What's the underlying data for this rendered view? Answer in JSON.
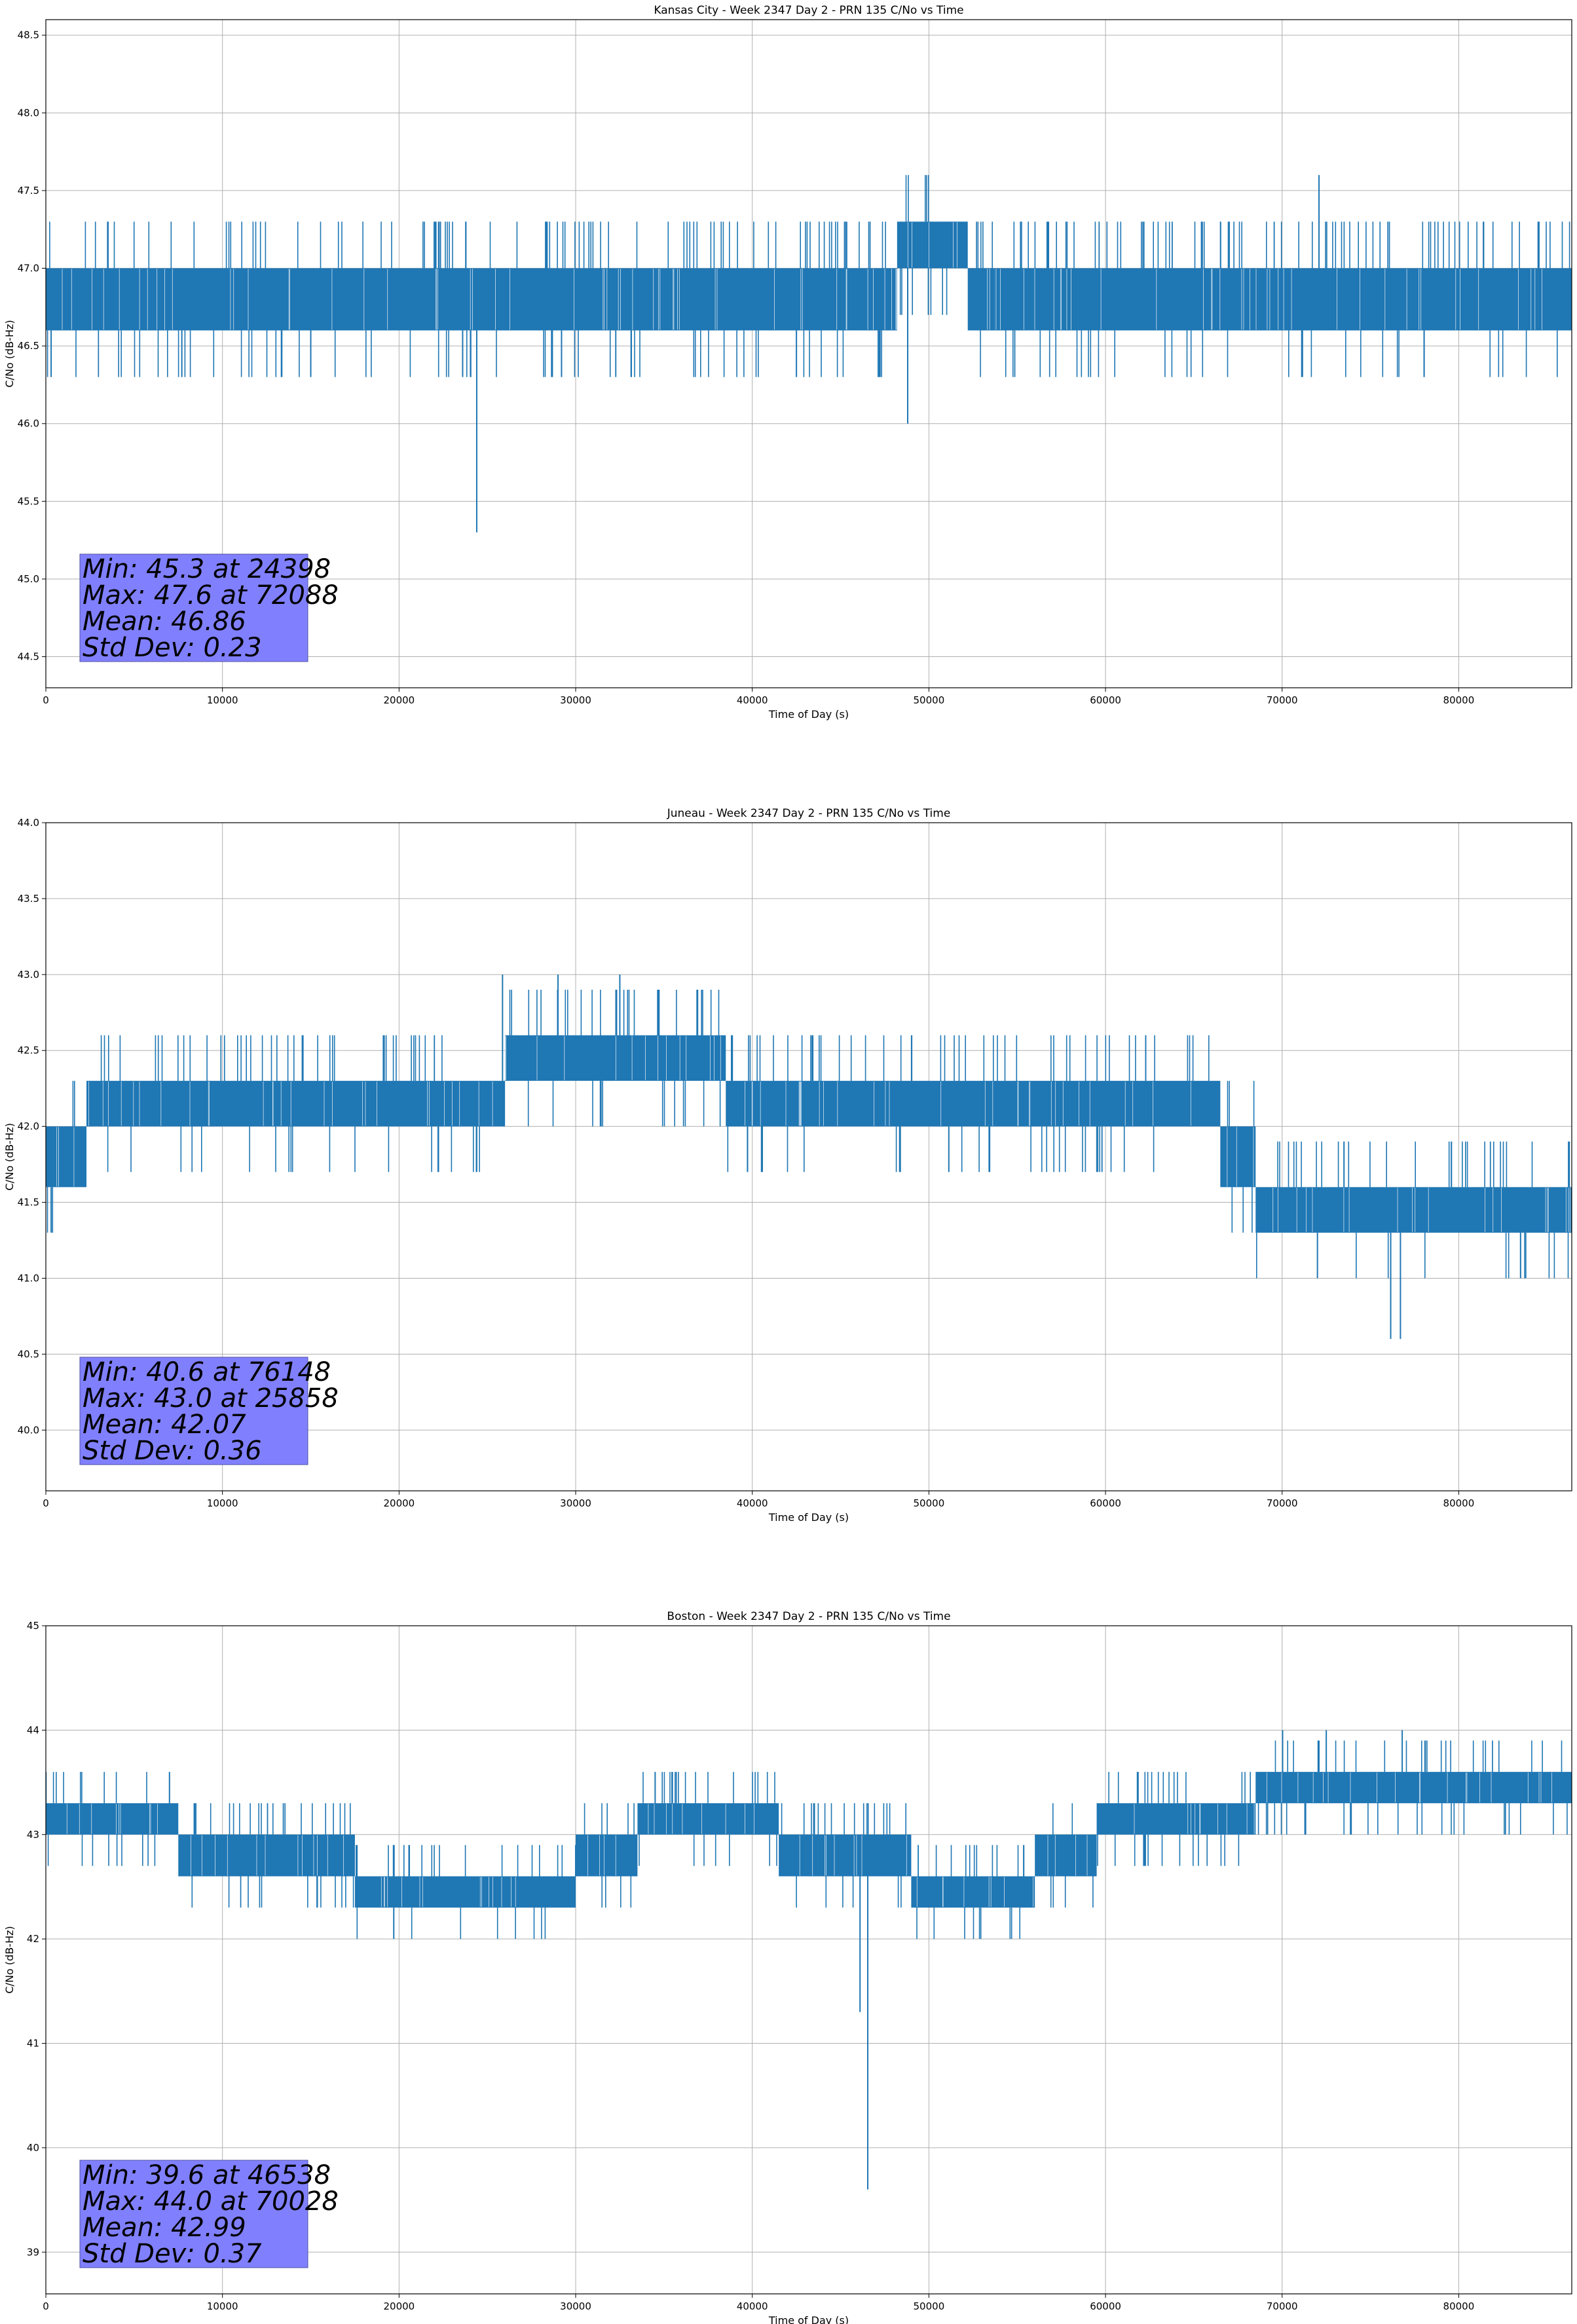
{
  "colors": {
    "series": "#1f77b4",
    "grid": "#b0b0b0",
    "stats_box": "#8080ff"
  },
  "chart_data": [
    {
      "type": "line",
      "title": "Kansas City - Week 2347 Day 2 - PRN 135 C/No vs Time",
      "xlabel": "Time of Day (s)",
      "ylabel": "C/No (dB-Hz)",
      "xlim": [
        0,
        86400
      ],
      "ylim": [
        44.3,
        48.6
      ],
      "xticks": [
        0,
        10000,
        20000,
        30000,
        40000,
        50000,
        60000,
        70000,
        80000
      ],
      "yticks": [
        44.5,
        45.0,
        45.5,
        46.0,
        46.5,
        47.0,
        47.5,
        48.0,
        48.5
      ],
      "ytick_labels": [
        "44.5",
        "45.0",
        "45.5",
        "46.0",
        "46.5",
        "47.0",
        "47.5",
        "48.0",
        "48.5"
      ],
      "grid": true,
      "baseline_band": [
        {
          "x": [
            0,
            48200
          ],
          "y": [
            46.6,
            47.0
          ]
        },
        {
          "x": [
            48200,
            52200
          ],
          "y": [
            47.0,
            47.3
          ]
        },
        {
          "x": [
            52200,
            53700
          ],
          "y": [
            46.6,
            47.0
          ]
        },
        {
          "x": [
            53700,
            86400
          ],
          "y": [
            46.6,
            47.0
          ]
        }
      ],
      "spikes": [
        {
          "x": 24398,
          "y": 45.3
        },
        {
          "x": 48800,
          "y": 46.0
        },
        {
          "x": 72088,
          "y": 47.6
        },
        {
          "x": 300,
          "y": 46.3
        },
        {
          "x": 7700,
          "y": 46.3
        },
        {
          "x": 15000,
          "y": 46.3
        },
        {
          "x": 23600,
          "y": 46.3
        },
        {
          "x": 29200,
          "y": 46.3
        },
        {
          "x": 42500,
          "y": 46.3
        }
      ],
      "stats": [
        "Min: 45.3 at 24398",
        "Max: 47.6 at 72088",
        "Mean: 46.86",
        "Std Dev: 0.23"
      ]
    },
    {
      "type": "line",
      "title": "Juneau - Week 2347 Day 2 - PRN 135 C/No vs Time",
      "xlabel": "Time of Day (s)",
      "ylabel": "C/No (dB-Hz)",
      "xlim": [
        0,
        86400
      ],
      "ylim": [
        39.6,
        44.0
      ],
      "xticks": [
        0,
        10000,
        20000,
        30000,
        40000,
        50000,
        60000,
        70000,
        80000
      ],
      "yticks": [
        40.0,
        40.5,
        41.0,
        41.5,
        42.0,
        42.5,
        43.0,
        43.5,
        44.0
      ],
      "ytick_labels": [
        "40.0",
        "40.5",
        "41.0",
        "41.5",
        "42.0",
        "42.5",
        "43.0",
        "43.5",
        "44.0"
      ],
      "grid": true,
      "baseline_band": [
        {
          "x": [
            0,
            2300
          ],
          "y": [
            41.6,
            42.0
          ]
        },
        {
          "x": [
            2300,
            26000
          ],
          "y": [
            42.0,
            42.3
          ]
        },
        {
          "x": [
            26000,
            38500
          ],
          "y": [
            42.3,
            42.6
          ]
        },
        {
          "x": [
            38500,
            66500
          ],
          "y": [
            42.0,
            42.3
          ]
        },
        {
          "x": [
            66500,
            68500
          ],
          "y": [
            41.6,
            42.0
          ]
        },
        {
          "x": [
            68500,
            86400
          ],
          "y": [
            41.3,
            41.6
          ]
        }
      ],
      "spikes": [
        {
          "x": 76148,
          "y": 40.6
        },
        {
          "x": 25858,
          "y": 43.0
        },
        {
          "x": 300,
          "y": 41.3
        },
        {
          "x": 29000,
          "y": 43.0
        },
        {
          "x": 32500,
          "y": 43.0
        },
        {
          "x": 76700,
          "y": 40.6
        },
        {
          "x": 72000,
          "y": 41.0
        },
        {
          "x": 83500,
          "y": 41.0
        }
      ],
      "stats": [
        "Min: 40.6 at 76148",
        "Max: 43.0 at 25858",
        "Mean: 42.07",
        "Std Dev: 0.36"
      ]
    },
    {
      "type": "line",
      "title": "Boston - Week 2347 Day 2 - PRN 135 C/No vs Time",
      "xlabel": "Time of Day (s)",
      "ylabel": "C/No (dB-Hz)",
      "xlim": [
        0,
        86400
      ],
      "ylim": [
        38.6,
        45.0
      ],
      "xticks": [
        0,
        10000,
        20000,
        30000,
        40000,
        50000,
        60000,
        70000,
        80000
      ],
      "yticks": [
        39,
        40,
        41,
        42,
        43,
        44,
        45
      ],
      "ytick_labels": [
        "39",
        "40",
        "41",
        "42",
        "43",
        "44",
        "45"
      ],
      "grid": true,
      "baseline_band": [
        {
          "x": [
            0,
            7500
          ],
          "y": [
            43.0,
            43.3
          ]
        },
        {
          "x": [
            7500,
            17500
          ],
          "y": [
            42.6,
            43.0
          ]
        },
        {
          "x": [
            17500,
            30000
          ],
          "y": [
            42.3,
            42.6
          ]
        },
        {
          "x": [
            30000,
            33500
          ],
          "y": [
            42.6,
            43.0
          ]
        },
        {
          "x": [
            33500,
            41500
          ],
          "y": [
            43.0,
            43.3
          ]
        },
        {
          "x": [
            41500,
            49000
          ],
          "y": [
            42.6,
            43.0
          ]
        },
        {
          "x": [
            49000,
            56000
          ],
          "y": [
            42.3,
            42.6
          ]
        },
        {
          "x": [
            56000,
            59500
          ],
          "y": [
            42.6,
            43.0
          ]
        },
        {
          "x": [
            59500,
            68500
          ],
          "y": [
            43.0,
            43.3
          ]
        },
        {
          "x": [
            68500,
            86400
          ],
          "y": [
            43.3,
            43.6
          ]
        }
      ],
      "spikes": [
        {
          "x": 46538,
          "y": 39.6
        },
        {
          "x": 46100,
          "y": 41.3
        },
        {
          "x": 19700,
          "y": 42.0
        },
        {
          "x": 70028,
          "y": 44.0
        },
        {
          "x": 72500,
          "y": 44.0
        },
        {
          "x": 76800,
          "y": 44.0
        },
        {
          "x": 34500,
          "y": 43.6
        },
        {
          "x": 7000,
          "y": 43.6
        }
      ],
      "stats": [
        "Min: 39.6 at 46538",
        "Max: 44.0 at 70028",
        "Mean: 42.99",
        "Std Dev: 0.37"
      ]
    }
  ]
}
